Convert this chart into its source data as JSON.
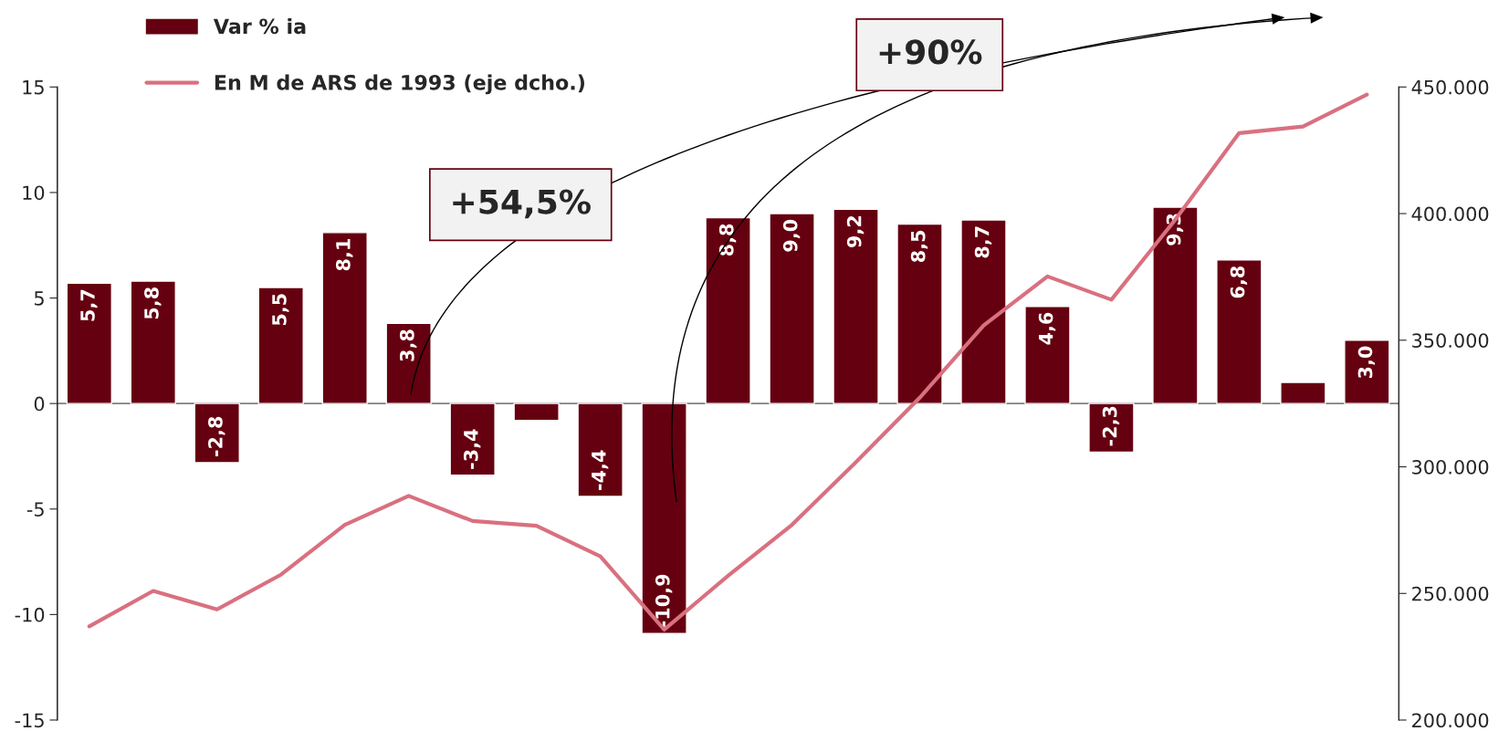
{
  "chart_data": {
    "type": "bar",
    "categories": [
      null,
      null,
      null,
      null,
      null,
      null,
      null,
      null,
      null,
      null,
      null,
      null,
      null,
      null,
      null,
      null,
      null,
      null,
      null,
      null,
      null
    ],
    "series": [
      {
        "name": "Var % ia",
        "color": "#650010",
        "values": [
          5.7,
          5.8,
          -2.8,
          5.5,
          8.1,
          3.8,
          -3.4,
          -0.8,
          -4.4,
          -10.9,
          8.8,
          9.0,
          9.2,
          8.5,
          8.7,
          4.6,
          -2.3,
          9.3,
          6.8,
          1.0,
          3.0
        ],
        "value_labels": [
          "5,7",
          "5,8",
          "-2,8",
          "5,5",
          "8,1",
          "3,8",
          "-3,4",
          null,
          "-4,4",
          "-10,9",
          "8,8",
          "9,0",
          "9,2",
          "8,5",
          "8,7",
          "4,6",
          "-2,3",
          "9,3",
          "6,8",
          null,
          "3,0"
        ]
      },
      {
        "name": "En M de ARS de 1993 (eje dcho.)",
        "type": "line",
        "axis": "y2",
        "color": "#d9707f",
        "values": [
          237000,
          251000,
          243700,
          257400,
          277100,
          288500,
          278600,
          276700,
          264600,
          235700,
          257000,
          277100,
          301800,
          327300,
          355800,
          375200,
          366000,
          397600,
          431800,
          434400,
          447000
        ]
      }
    ],
    "ylim": [
      -15,
      15
    ],
    "yticks": [
      -15,
      -10,
      -5,
      0,
      5,
      10,
      15
    ],
    "y2lim": [
      200000,
      450000
    ],
    "y2ticks": [
      {
        "value": 200000,
        "label": "200.000"
      },
      {
        "value": 250000,
        "label": "250.000"
      },
      {
        "value": 300000,
        "label": "300.000"
      },
      {
        "value": 350000,
        "label": "350.000"
      },
      {
        "value": 400000,
        "label": "400.000"
      },
      {
        "value": 450000,
        "label": "450.000"
      }
    ],
    "annotations": [
      "+54,5%",
      "+90%"
    ],
    "ref_lines": [
      {
        "axis": "y",
        "value": 0,
        "color": "#808080"
      }
    ],
    "legend": "top left",
    "grid": false
  }
}
